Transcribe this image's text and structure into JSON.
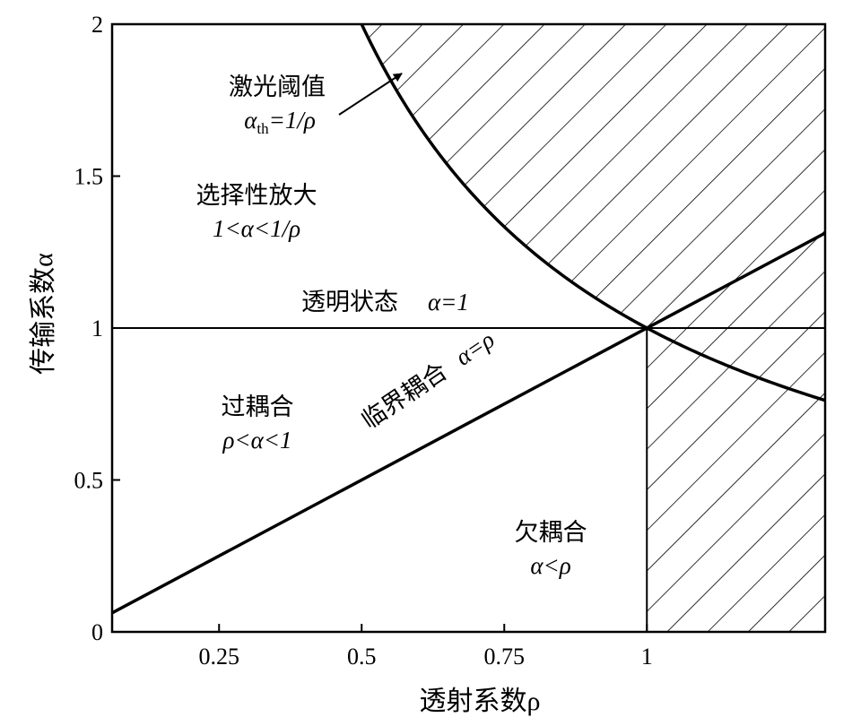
{
  "chart_data": {
    "type": "line",
    "xlabel": "透射系数ρ",
    "ylabel": "传输系数α",
    "xlim": [
      0.0625,
      1.3125
    ],
    "ylim": [
      0,
      2
    ],
    "xticks": [
      {
        "value": 0.25,
        "label": "0.25"
      },
      {
        "value": 0.5,
        "label": "0.5"
      },
      {
        "value": 0.75,
        "label": "0.75"
      },
      {
        "value": 1,
        "label": "1"
      }
    ],
    "yticks": [
      {
        "value": 0,
        "label": "0"
      },
      {
        "value": 0.5,
        "label": "0.5"
      },
      {
        "value": 1,
        "label": "1"
      },
      {
        "value": 1.5,
        "label": "1.5"
      },
      {
        "value": 2,
        "label": "2"
      }
    ],
    "grid": false,
    "series": [
      {
        "key": "critical",
        "equation": "α=ρ",
        "x": [
          0.0625,
          1.3125
        ],
        "y": [
          0.0625,
          1.3125
        ]
      },
      {
        "key": "threshold",
        "equation": "α=1/ρ",
        "x_start": 0.5,
        "x_end": 1.3125
      },
      {
        "key": "transparent",
        "equation": "α=1",
        "x": [
          0.0625,
          1.3125
        ],
        "y": [
          1,
          1
        ]
      }
    ],
    "hatched_regions": [
      "α>1/ρ",
      "ρ>1, α<1/ρ"
    ],
    "annotations": {
      "threshold_name": "激光阈值",
      "threshold_eq_alpha": "α",
      "threshold_eq_sub": "th",
      "threshold_eq_rest": "=1/ρ",
      "selective_name": "选择性放大",
      "selective_cond": "1<α<1/ρ",
      "transparent_name": "透明状态",
      "transparent_eq": "α=1",
      "over_name": "过耦合",
      "over_cond": "ρ<α<1",
      "critical_label": "临界耦合",
      "critical_eq": "α=ρ",
      "under_name": "欠耦合",
      "under_cond": "α<ρ"
    }
  }
}
